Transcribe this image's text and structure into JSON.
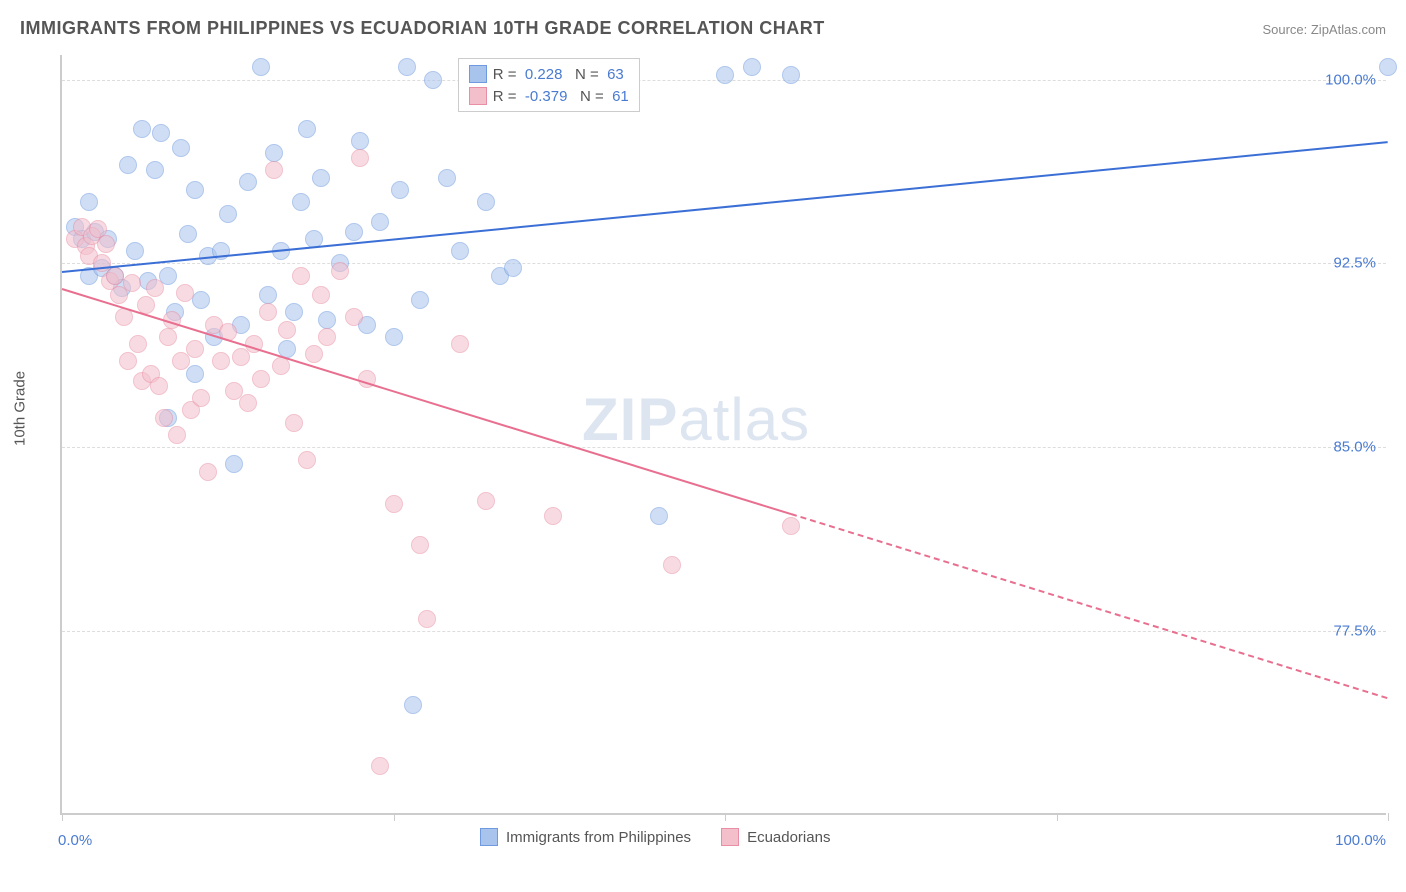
{
  "title": "IMMIGRANTS FROM PHILIPPINES VS ECUADORIAN 10TH GRADE CORRELATION CHART",
  "source": "Source: ZipAtlas.com",
  "watermark_zip": "ZIP",
  "watermark_atlas": "atlas",
  "chart": {
    "type": "scatter",
    "background_color": "#ffffff",
    "grid_color": "#dddddd",
    "axis_color": "#cccccc",
    "label_color": "#555555",
    "tick_color": "#4a7bd0",
    "title_fontsize": 18,
    "label_fontsize": 15,
    "ylabel": "10th Grade",
    "xlim": [
      0,
      100
    ],
    "ylim": [
      70,
      101
    ],
    "y_ticks": [
      77.5,
      85.0,
      92.5,
      100.0
    ],
    "y_tick_labels": [
      "77.5%",
      "85.0%",
      "92.5%",
      "100.0%"
    ],
    "x_ticks": [
      0,
      25,
      50,
      75,
      100
    ],
    "x_min_label": "0.0%",
    "x_max_label": "100.0%",
    "point_radius": 9,
    "point_opacity": 0.55,
    "series": [
      {
        "name": "Immigrants from Philippines",
        "color_fill": "#a9c4ec",
        "color_stroke": "#6f9adf",
        "r_value": "0.228",
        "n_value": "63",
        "trend": {
          "x0": 0,
          "y0": 92.2,
          "x1": 100,
          "y1": 97.5,
          "solid_to_x": 100,
          "color": "#3b6fd6"
        },
        "points": [
          [
            1,
            94
          ],
          [
            1.5,
            93.5
          ],
          [
            2,
            95
          ],
          [
            2,
            92
          ],
          [
            2.5,
            93.8
          ],
          [
            3,
            92.3
          ],
          [
            3.5,
            93.5
          ],
          [
            4,
            92
          ],
          [
            4.5,
            91.5
          ],
          [
            5,
            96.5
          ],
          [
            5.5,
            93
          ],
          [
            6,
            98
          ],
          [
            6.5,
            91.8
          ],
          [
            7,
            96.3
          ],
          [
            7.5,
            97.8
          ],
          [
            8,
            86.2
          ],
          [
            8,
            92
          ],
          [
            8.5,
            90.5
          ],
          [
            9,
            97.2
          ],
          [
            9.5,
            93.7
          ],
          [
            10,
            95.5
          ],
          [
            10,
            88
          ],
          [
            10.5,
            91
          ],
          [
            11,
            92.8
          ],
          [
            11.5,
            89.5
          ],
          [
            12,
            93
          ],
          [
            12.5,
            94.5
          ],
          [
            13,
            84.3
          ],
          [
            13.5,
            90
          ],
          [
            14,
            95.8
          ],
          [
            15,
            100.5
          ],
          [
            15.5,
            91.2
          ],
          [
            16,
            97
          ],
          [
            16.5,
            93
          ],
          [
            17,
            89
          ],
          [
            17.5,
            90.5
          ],
          [
            18,
            95
          ],
          [
            18.5,
            98
          ],
          [
            19,
            93.5
          ],
          [
            19.5,
            96
          ],
          [
            20,
            90.2
          ],
          [
            21,
            92.5
          ],
          [
            22,
            93.8
          ],
          [
            22.5,
            97.5
          ],
          [
            23,
            90
          ],
          [
            24,
            94.2
          ],
          [
            25,
            89.5
          ],
          [
            25.5,
            95.5
          ],
          [
            26,
            100.5
          ],
          [
            26.5,
            74.5
          ],
          [
            27,
            91
          ],
          [
            28,
            100
          ],
          [
            29,
            96
          ],
          [
            30,
            93
          ],
          [
            32,
            95
          ],
          [
            33,
            92
          ],
          [
            34,
            92.3
          ],
          [
            36,
            100.2
          ],
          [
            45,
            82.2
          ],
          [
            50,
            100.2
          ],
          [
            52,
            100.5
          ],
          [
            55,
            100.2
          ],
          [
            100,
            100.5
          ]
        ]
      },
      {
        "name": "Ecuadorians",
        "color_fill": "#f3bfcb",
        "color_stroke": "#e98fa5",
        "r_value": "-0.379",
        "n_value": "61",
        "trend": {
          "x0": 0,
          "y0": 91.5,
          "x1": 100,
          "y1": 74.8,
          "solid_to_x": 55,
          "color": "#e86f8f"
        },
        "points": [
          [
            1,
            93.5
          ],
          [
            1.5,
            94
          ],
          [
            1.8,
            93.2
          ],
          [
            2,
            92.8
          ],
          [
            2.3,
            93.6
          ],
          [
            2.7,
            93.9
          ],
          [
            3,
            92.5
          ],
          [
            3.3,
            93.3
          ],
          [
            3.6,
            91.8
          ],
          [
            4,
            92
          ],
          [
            4.3,
            91.2
          ],
          [
            4.7,
            90.3
          ],
          [
            5,
            88.5
          ],
          [
            5.3,
            91.7
          ],
          [
            5.7,
            89.2
          ],
          [
            6,
            87.7
          ],
          [
            6.3,
            90.8
          ],
          [
            6.7,
            88
          ],
          [
            7,
            91.5
          ],
          [
            7.3,
            87.5
          ],
          [
            7.7,
            86.2
          ],
          [
            8,
            89.5
          ],
          [
            8.3,
            90.2
          ],
          [
            8.7,
            85.5
          ],
          [
            9,
            88.5
          ],
          [
            9.3,
            91.3
          ],
          [
            9.7,
            86.5
          ],
          [
            10,
            89
          ],
          [
            10.5,
            87
          ],
          [
            11,
            84
          ],
          [
            11.5,
            90
          ],
          [
            12,
            88.5
          ],
          [
            12.5,
            89.7
          ],
          [
            13,
            87.3
          ],
          [
            13.5,
            88.7
          ],
          [
            14,
            86.8
          ],
          [
            14.5,
            89.2
          ],
          [
            15,
            87.8
          ],
          [
            15.5,
            90.5
          ],
          [
            16,
            96.3
          ],
          [
            16.5,
            88.3
          ],
          [
            17,
            89.8
          ],
          [
            17.5,
            86
          ],
          [
            18,
            92
          ],
          [
            18.5,
            84.5
          ],
          [
            19,
            88.8
          ],
          [
            19.5,
            91.2
          ],
          [
            20,
            89.5
          ],
          [
            21,
            92.2
          ],
          [
            22,
            90.3
          ],
          [
            22.5,
            96.8
          ],
          [
            23,
            87.8
          ],
          [
            24,
            72
          ],
          [
            25,
            82.7
          ],
          [
            27,
            81
          ],
          [
            27.5,
            78
          ],
          [
            30,
            89.2
          ],
          [
            32,
            82.8
          ],
          [
            37,
            82.2
          ],
          [
            46,
            80.2
          ],
          [
            55,
            81.8
          ]
        ]
      }
    ],
    "legend_top": {
      "r_label": "R =",
      "n_label": "N =",
      "text_color": "#555555",
      "value_color": "#4a7bd0"
    },
    "legend_bottom": {
      "text_color": "#555555"
    }
  }
}
